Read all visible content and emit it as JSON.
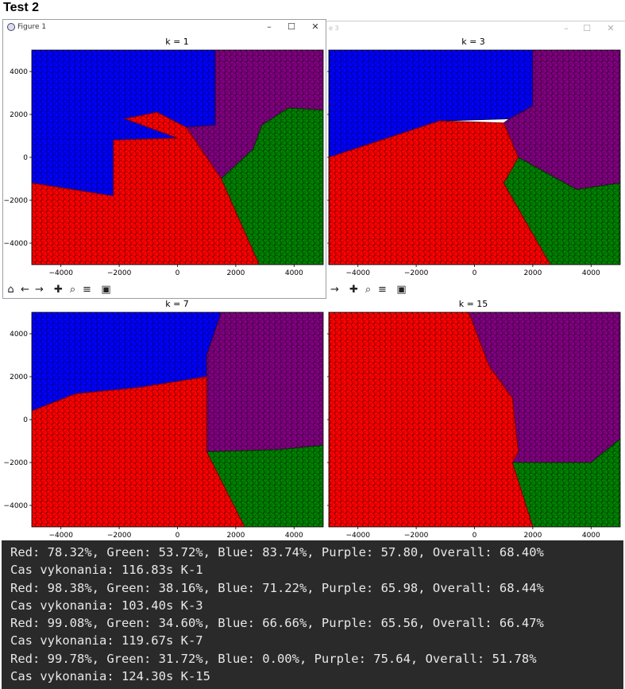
{
  "heading": "Test 2",
  "window": {
    "title": "Figure 1",
    "behind_title_fragment": "e 3",
    "controls": {
      "minimize": "–",
      "maximize": "☐",
      "close": "✕"
    }
  },
  "toolbar_icons": [
    "home-icon",
    "back-icon",
    "forward-icon",
    "pan-icon",
    "zoom-icon",
    "configure-subplots-icon",
    "save-icon"
  ],
  "toolbar_glyphs": {
    "home": "⌂",
    "back": "←",
    "forward": "→",
    "pan": "✚",
    "zoom": "⌕",
    "configure": "≡",
    "save": "▣"
  },
  "colors": {
    "red": "#ff0000",
    "green": "#008000",
    "blue": "#0000ff",
    "purple": "#800080",
    "console_bg": "#2a2a2a"
  },
  "chart_data": [
    {
      "type": "scatter",
      "title": "k = 1",
      "xlim": [
        -5000,
        5000
      ],
      "ylim": [
        -5000,
        5000
      ],
      "xticks": [
        "−4000",
        "−2000",
        "0",
        "2000",
        "4000"
      ],
      "yticks": [
        "4000",
        "2000",
        "0",
        "−2000",
        "−4000"
      ],
      "classes": [
        "Red",
        "Green",
        "Blue",
        "Purple"
      ],
      "regions": {
        "blue": [
          [
            -5000,
            5000
          ],
          [
            1300,
            5000
          ],
          [
            1300,
            1500
          ],
          [
            200,
            1400
          ],
          [
            0,
            900
          ],
          [
            -2200,
            800
          ],
          [
            -2200,
            -1800
          ],
          [
            -5000,
            -1200
          ]
        ],
        "purple": [
          [
            1300,
            5000
          ],
          [
            5000,
            5000
          ],
          [
            5000,
            2200
          ],
          [
            3800,
            2300
          ],
          [
            2900,
            1500
          ],
          [
            2600,
            400
          ],
          [
            1500,
            -1000
          ],
          [
            300,
            -800
          ],
          [
            200,
            1400
          ],
          [
            1300,
            1500
          ]
        ],
        "green": [
          [
            5000,
            2200
          ],
          [
            5000,
            -5000
          ],
          [
            2800,
            -5000
          ],
          [
            1500,
            -1000
          ],
          [
            2600,
            400
          ],
          [
            2900,
            1500
          ],
          [
            3800,
            2300
          ]
        ],
        "red": [
          [
            -5000,
            -1200
          ],
          [
            -2200,
            -1800
          ],
          [
            -2200,
            800
          ],
          [
            0,
            900
          ],
          [
            -1800,
            1800
          ],
          [
            -700,
            2100
          ],
          [
            300,
            1400
          ],
          [
            1500,
            -1000
          ],
          [
            2800,
            -5000
          ],
          [
            -5000,
            -5000
          ]
        ]
      }
    },
    {
      "type": "scatter",
      "title": "k = 3",
      "xlim": [
        -5000,
        5000
      ],
      "ylim": [
        -5000,
        5000
      ],
      "xticks": [
        "−4000",
        "−2000",
        "0",
        "2000",
        "4000"
      ],
      "yticks": [
        "4000",
        "2000",
        "0",
        "−2000",
        "−4000"
      ],
      "classes": [
        "Red",
        "Green",
        "Blue",
        "Purple"
      ],
      "regions": {
        "blue": [
          [
            -5000,
            5000
          ],
          [
            2000,
            5000
          ],
          [
            2000,
            2400
          ],
          [
            1200,
            1800
          ],
          [
            -1200,
            1700
          ],
          [
            -3200,
            800
          ],
          [
            -5000,
            0
          ]
        ],
        "purple": [
          [
            2000,
            5000
          ],
          [
            5000,
            5000
          ],
          [
            5000,
            -1200
          ],
          [
            3500,
            -1500
          ],
          [
            1500,
            0
          ],
          [
            1000,
            1600
          ],
          [
            1200,
            1800
          ],
          [
            2000,
            2400
          ]
        ],
        "green": [
          [
            5000,
            -1200
          ],
          [
            5000,
            -5000
          ],
          [
            2600,
            -5000
          ],
          [
            1000,
            -1200
          ],
          [
            1500,
            0
          ],
          [
            3500,
            -1500
          ]
        ],
        "red": [
          [
            -5000,
            0
          ],
          [
            -3200,
            800
          ],
          [
            -1200,
            1700
          ],
          [
            1000,
            1600
          ],
          [
            1500,
            0
          ],
          [
            1000,
            -1200
          ],
          [
            2600,
            -5000
          ],
          [
            -5000,
            -5000
          ]
        ]
      }
    },
    {
      "type": "scatter",
      "title": "k = 7",
      "xlim": [
        -5000,
        5000
      ],
      "ylim": [
        -5000,
        5000
      ],
      "xticks": [
        "−4000",
        "−2000",
        "0",
        "2000",
        "4000"
      ],
      "yticks": [
        "4000",
        "2000",
        "0",
        "−2000",
        "−4000"
      ],
      "classes": [
        "Red",
        "Green",
        "Blue",
        "Purple"
      ],
      "regions": {
        "blue": [
          [
            -5000,
            5000
          ],
          [
            1500,
            5000
          ],
          [
            1000,
            3000
          ],
          [
            1000,
            2000
          ],
          [
            -1300,
            1500
          ],
          [
            -3500,
            1200
          ],
          [
            -5000,
            400
          ]
        ],
        "purple": [
          [
            1500,
            5000
          ],
          [
            5000,
            5000
          ],
          [
            5000,
            -1200
          ],
          [
            3500,
            -1400
          ],
          [
            1000,
            -1500
          ],
          [
            1000,
            2000
          ],
          [
            1000,
            3000
          ]
        ],
        "green": [
          [
            5000,
            -1200
          ],
          [
            5000,
            -5000
          ],
          [
            2300,
            -5000
          ],
          [
            1000,
            -1500
          ],
          [
            3500,
            -1400
          ]
        ],
        "red": [
          [
            -5000,
            400
          ],
          [
            -3500,
            1200
          ],
          [
            -1300,
            1500
          ],
          [
            1000,
            2000
          ],
          [
            1000,
            -1500
          ],
          [
            2300,
            -5000
          ],
          [
            -5000,
            -5000
          ]
        ]
      }
    },
    {
      "type": "scatter",
      "title": "k = 15",
      "xlim": [
        -5000,
        5000
      ],
      "ylim": [
        -5000,
        5000
      ],
      "xticks": [
        "−4000",
        "−2000",
        "0",
        "2000",
        "4000"
      ],
      "yticks": [
        "4000",
        "2000",
        "0",
        "−2000",
        "−4000"
      ],
      "classes": [
        "Red",
        "Green",
        "Blue",
        "Purple"
      ],
      "regions": {
        "red": [
          [
            -5000,
            5000
          ],
          [
            -200,
            5000
          ],
          [
            500,
            2500
          ],
          [
            1300,
            1000
          ],
          [
            1500,
            -1500
          ],
          [
            1300,
            -2000
          ],
          [
            2000,
            -5000
          ],
          [
            -5000,
            -5000
          ]
        ],
        "purple": [
          [
            -200,
            5000
          ],
          [
            5000,
            5000
          ],
          [
            5000,
            -900
          ],
          [
            4000,
            -2000
          ],
          [
            1300,
            -2000
          ],
          [
            1500,
            -1500
          ],
          [
            1300,
            1000
          ],
          [
            500,
            2500
          ]
        ],
        "green": [
          [
            5000,
            -900
          ],
          [
            5000,
            -5000
          ],
          [
            2000,
            -5000
          ],
          [
            1300,
            -2000
          ],
          [
            4000,
            -2000
          ]
        ],
        "blue": []
      }
    }
  ],
  "console": {
    "lines": [
      "Red: 78.32%, Green: 53.72%, Blue: 83.74%, Purple: 57.80, Overall: 68.40%",
      "Cas vykonania: 116.83s K-1",
      "Red: 98.38%, Green: 38.16%, Blue: 71.22%, Purple: 65.98, Overall: 68.44%",
      "Cas vykonania: 103.40s K-3",
      "Red: 99.08%, Green: 34.60%, Blue: 66.66%, Purple: 65.56, Overall: 66.47%",
      "Cas vykonania: 119.67s K-7",
      "Red: 99.78%, Green: 31.72%, Blue: 0.00%, Purple: 75.64, Overall: 51.78%",
      "Cas vykonania: 124.30s K-15"
    ]
  }
}
